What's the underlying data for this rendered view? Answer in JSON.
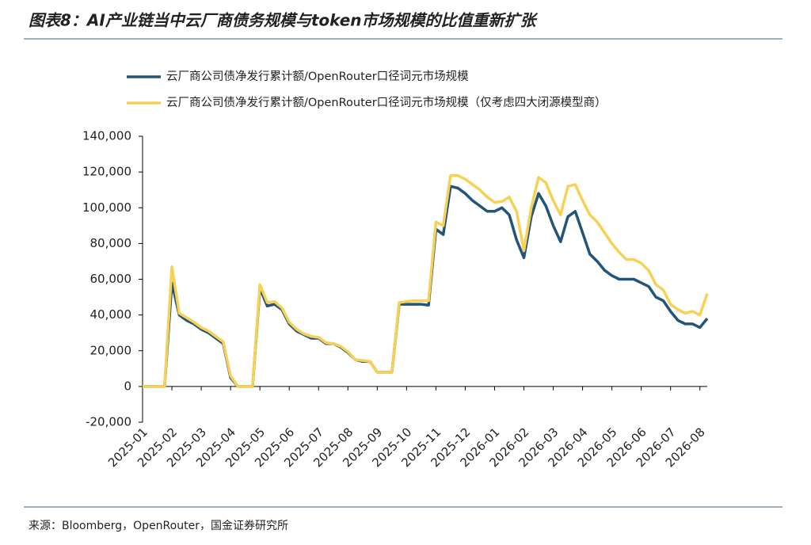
{
  "chart_data": {
    "type": "line",
    "title": "图表8：AI产业链当中云厂商债务规模与token市场规模的比值重新扩张",
    "source": "来源：Bloomberg，OpenRouter，国金证券研究所",
    "categories": [
      "2025-01",
      null,
      null,
      null,
      "2025-02",
      null,
      null,
      null,
      "2025-03",
      null,
      null,
      null,
      "2025-04",
      null,
      null,
      null,
      "2025-05",
      null,
      null,
      null,
      "2025-06",
      null,
      null,
      null,
      "2025-07",
      null,
      null,
      null,
      "2025-08",
      null,
      null,
      null,
      "2025-09",
      null,
      null,
      null,
      "2025-10",
      null,
      null,
      null,
      "2025-11",
      null,
      null,
      null,
      "2025-12",
      null,
      null,
      null,
      "2026-01",
      null,
      null,
      null,
      "2026-02",
      null,
      null,
      null,
      "2026-03",
      null,
      null,
      null,
      "2026-04",
      null,
      null,
      null,
      "2026-05",
      null,
      null,
      null,
      "2026-06",
      null,
      null,
      null,
      "2026-07",
      null,
      null,
      null,
      "2026-08",
      null
    ],
    "series": [
      {
        "name": "云厂商公司债净发行累计额/OpenRouter口径词元市场规模",
        "color": "#235479",
        "values": [
          0,
          0,
          0,
          0,
          58000,
          40000,
          37000,
          35000,
          32000,
          30000,
          27000,
          24000,
          5000,
          0,
          0,
          0,
          55000,
          45000,
          46000,
          43000,
          35000,
          31000,
          29000,
          27000,
          27000,
          24000,
          24000,
          22000,
          19000,
          15000,
          14000,
          14000,
          8000,
          8000,
          8000,
          46000,
          46000,
          46000,
          46000,
          45500,
          88000,
          85000,
          112000,
          111000,
          108000,
          104000,
          101000,
          98000,
          98000,
          100000,
          96000,
          82000,
          72000,
          95000,
          108000,
          101000,
          90000,
          81000,
          95000,
          98000,
          86000,
          74000,
          70000,
          65000,
          62000,
          60000,
          60000,
          60000,
          58000,
          56000,
          50000,
          48000,
          42000,
          37000,
          35000,
          35000,
          33000,
          38000
        ]
      },
      {
        "name": "云厂商公司债净发行累计额/OpenRouter口径词元市场规模（仅考虑四大闭源模型商）",
        "color": "#f6d155",
        "values": [
          0,
          0,
          0,
          0,
          67000,
          41000,
          38500,
          36000,
          33000,
          31000,
          28000,
          25000,
          6000,
          0,
          0,
          0,
          57000,
          47000,
          47500,
          44000,
          36000,
          32000,
          29500,
          28000,
          27500,
          24500,
          24000,
          22500,
          19500,
          15000,
          14500,
          14000,
          8000,
          8000,
          8000,
          47000,
          47500,
          48000,
          48000,
          48000,
          92000,
          90000,
          118000,
          118000,
          116000,
          113000,
          110000,
          106000,
          103000,
          103500,
          106000,
          98000,
          76000,
          100000,
          117000,
          114000,
          104000,
          96000,
          112000,
          113000,
          104000,
          96000,
          92000,
          86000,
          80000,
          75000,
          71000,
          71000,
          69000,
          65000,
          57000,
          54000,
          46000,
          43000,
          41000,
          42000,
          40000,
          52000
        ]
      }
    ],
    "ylim": [
      -20000,
      140000
    ],
    "yticks": [
      {
        "value": -20000,
        "label": "-20,000"
      },
      0,
      {
        "value": 20000,
        "label": "20,000"
      },
      {
        "value": 40000,
        "label": "40,000"
      },
      {
        "value": 60000,
        "label": "60,000"
      },
      {
        "value": 80000,
        "label": "80,000"
      },
      {
        "value": 100000,
        "label": "100,000"
      },
      {
        "value": 120000,
        "label": "120,000"
      },
      {
        "value": 140000,
        "label": "140,000"
      }
    ]
  }
}
